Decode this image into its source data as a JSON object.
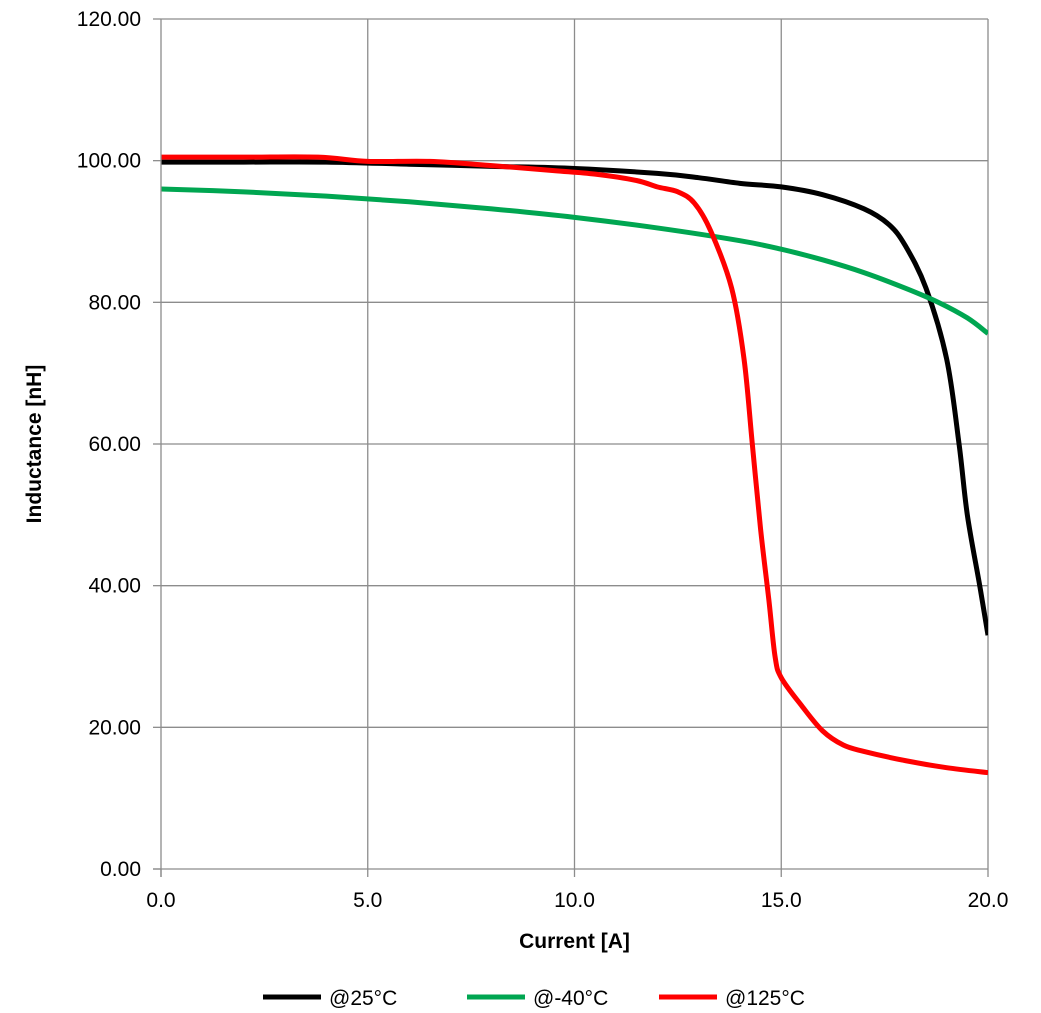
{
  "chart_data": {
    "type": "line",
    "title": "",
    "xlabel": "Current [A]",
    "ylabel": "Inductance [nH]",
    "xlim": [
      0,
      20
    ],
    "ylim": [
      0,
      120
    ],
    "xticks": [
      0,
      5,
      10,
      15,
      20
    ],
    "yticks": [
      0,
      20,
      40,
      60,
      80,
      100,
      120
    ],
    "x_tick_labels": [
      "0.0",
      "5.0",
      "10.0",
      "15.0",
      "20.0"
    ],
    "y_tick_labels": [
      "0.00",
      "20.00",
      "40.00",
      "60.00",
      "80.00",
      "100.00",
      "120.00"
    ],
    "grid": true,
    "legend_position": "bottom",
    "series": [
      {
        "name": "@25°C",
        "color": "#000000",
        "points": [
          [
            0,
            99.8
          ],
          [
            2,
            99.8
          ],
          [
            4,
            99.8
          ],
          [
            6,
            99.5
          ],
          [
            8,
            99.2
          ],
          [
            10,
            98.9
          ],
          [
            12,
            98.2
          ],
          [
            13,
            97.6
          ],
          [
            14,
            96.8
          ],
          [
            15,
            96.3
          ],
          [
            16,
            95.2
          ],
          [
            17,
            93.2
          ],
          [
            17.6,
            91.0
          ],
          [
            18.0,
            88.0
          ],
          [
            18.5,
            82.0
          ],
          [
            19.0,
            72.0
          ],
          [
            19.3,
            60.0
          ],
          [
            19.5,
            50.0
          ],
          [
            19.8,
            40.0
          ],
          [
            20.0,
            33.0
          ]
        ]
      },
      {
        "name": "@-40°C",
        "color": "#00a651",
        "points": [
          [
            0,
            96.0
          ],
          [
            2,
            95.6
          ],
          [
            4,
            95.0
          ],
          [
            6,
            94.2
          ],
          [
            8,
            93.2
          ],
          [
            10,
            92.0
          ],
          [
            12,
            90.5
          ],
          [
            14,
            88.7
          ],
          [
            15,
            87.5
          ],
          [
            16,
            86.0
          ],
          [
            17,
            84.2
          ],
          [
            18,
            82.0
          ],
          [
            18.8,
            80.0
          ],
          [
            19.5,
            77.8
          ],
          [
            20.0,
            75.6
          ]
        ]
      },
      {
        "name": "@125°C",
        "color": "#ff0000",
        "points": [
          [
            0,
            100.5
          ],
          [
            2,
            100.5
          ],
          [
            3.8,
            100.5
          ],
          [
            5,
            99.9
          ],
          [
            6.5,
            99.9
          ],
          [
            8,
            99.3
          ],
          [
            9.5,
            98.6
          ],
          [
            10.5,
            98.1
          ],
          [
            11.5,
            97.2
          ],
          [
            12,
            96.3
          ],
          [
            12.5,
            95.6
          ],
          [
            12.9,
            94.0
          ],
          [
            13.3,
            90.0
          ],
          [
            13.8,
            82.0
          ],
          [
            14.1,
            72.0
          ],
          [
            14.3,
            60.0
          ],
          [
            14.5,
            48.0
          ],
          [
            14.7,
            38.0
          ],
          [
            14.85,
            30.0
          ],
          [
            15.0,
            27.0
          ],
          [
            15.5,
            23.0
          ],
          [
            16.0,
            19.5
          ],
          [
            16.5,
            17.5
          ],
          [
            17.0,
            16.6
          ],
          [
            18.0,
            15.3
          ],
          [
            19.0,
            14.3
          ],
          [
            20.0,
            13.6
          ]
        ]
      }
    ]
  }
}
